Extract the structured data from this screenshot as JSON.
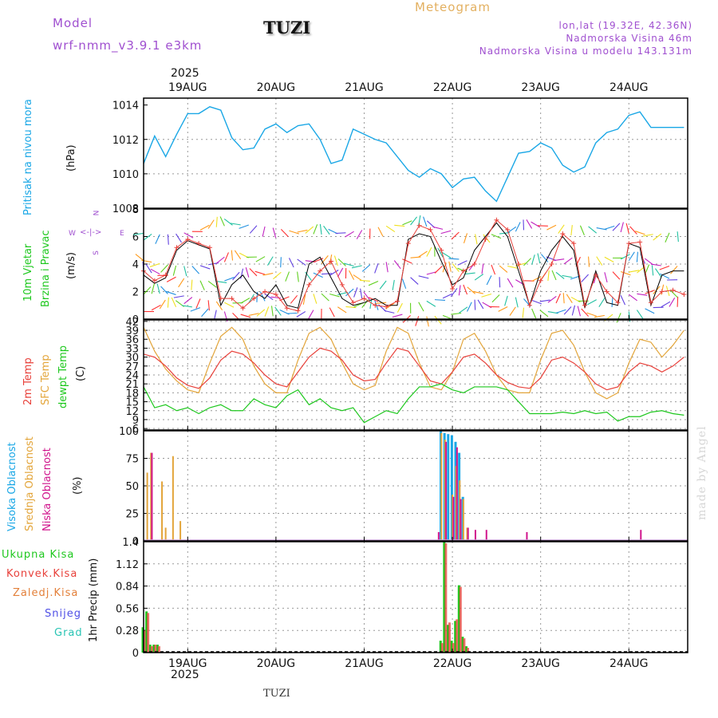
{
  "header": {
    "model_label": "Model",
    "model_name": "wrf-nmm_v3.9.1 e3km",
    "station": "TUZI",
    "meteogram_label": "Meteogram",
    "coords": "lon,lat (19.32E, 42.36N)",
    "elevation": "Nadmorska Visina 46m",
    "model_elevation": "Nadmorska Visina u modelu 143.131m",
    "year_top": "2025",
    "year_bottom": "2025",
    "footer_station": "TUZI",
    "credit": "made by Angel"
  },
  "colors": {
    "pressure": "#1aa7e6",
    "wind_speed": "#e8403a",
    "wind_gust": "#000000",
    "temp2m": "#e8403a",
    "sfctemp": "#e3a53a",
    "dewpt": "#1ec81e",
    "high_cloud": "#1aa7e6",
    "mid_cloud": "#e3a53a",
    "low_cloud": "#d0148c",
    "total_precip": "#1ec81e",
    "conv_precip": "#e8403a",
    "frozen_precip": "#e3803a",
    "snow": "#5050e6",
    "hail": "#29c4b4",
    "header_purple": "#a050d0",
    "meteogram": "#e3b060"
  },
  "chart_data": [
    {
      "type": "line",
      "panel": "pressure",
      "ylabels": [
        "Pritisak na nivou mora",
        "(hPa)"
      ],
      "ylim": [
        1008,
        1014.4
      ],
      "yticks": [
        "1008",
        "1010",
        "1012",
        "1014"
      ],
      "x_hours": [
        0,
        3,
        6,
        9,
        12,
        15,
        18,
        21,
        24,
        27,
        30,
        33,
        36,
        39,
        42,
        45,
        48,
        51,
        54,
        57,
        60,
        63,
        66,
        69,
        72,
        75,
        78,
        81,
        84,
        87,
        90,
        93,
        96,
        99,
        102,
        105,
        108,
        111,
        114,
        117,
        120,
        123,
        126,
        129,
        132,
        135,
        138,
        141,
        144,
        147
      ],
      "series": [
        {
          "name": "pressure",
          "values": [
            1010.6,
            1012.2,
            1011.0,
            1012.3,
            1013.5,
            1013.5,
            1013.9,
            1013.7,
            1012.1,
            1011.4,
            1011.5,
            1012.6,
            1012.9,
            1012.4,
            1012.8,
            1012.9,
            1012.0,
            1010.6,
            1010.8,
            1012.6,
            1012.3,
            1012.0,
            1011.8,
            1011.0,
            1010.2,
            1009.8,
            1010.3,
            1010.0,
            1009.2,
            1009.7,
            1009.8,
            1009.0,
            1008.4,
            1009.8,
            1011.2,
            1011.3,
            1011.8,
            1011.5,
            1010.5,
            1010.1,
            1010.4,
            1011.8,
            1012.4,
            1012.6,
            1013.4,
            1013.6,
            1012.7,
            1012.7,
            1012.7,
            1012.7
          ]
        }
      ]
    },
    {
      "type": "line",
      "panel": "wind",
      "ylabels": [
        "10m Vjetar",
        "Brzina i Pravac",
        "(m/s)"
      ],
      "compass": [
        "N",
        "E",
        "W",
        "S"
      ],
      "ylim": [
        0,
        8
      ],
      "yticks": [
        "0",
        "2",
        "4",
        "6",
        "8"
      ],
      "x_hours": [
        0,
        3,
        6,
        9,
        12,
        15,
        18,
        21,
        24,
        27,
        30,
        33,
        36,
        39,
        42,
        45,
        48,
        51,
        54,
        57,
        60,
        63,
        66,
        69,
        72,
        75,
        78,
        81,
        84,
        87,
        90,
        93,
        96,
        99,
        102,
        105,
        108,
        111,
        114,
        117,
        120,
        123,
        126,
        129,
        132,
        135,
        138,
        141,
        144,
        147
      ],
      "series": [
        {
          "name": "wind_speed",
          "values": [
            3.5,
            2.8,
            3.2,
            5.2,
            5.8,
            5.5,
            5.2,
            1.5,
            1.5,
            0.8,
            1.5,
            2.0,
            1.8,
            0.8,
            0.6,
            2.5,
            3.5,
            4.2,
            2.5,
            1.2,
            1.5,
            1.0,
            0.9,
            1.3,
            5.5,
            6.8,
            6.5,
            5.0,
            2.2,
            3.5,
            4.0,
            5.8,
            7.2,
            6.5,
            4.0,
            1.0,
            2.8,
            4.0,
            6.2,
            5.5,
            1.0,
            3.2,
            2.0,
            1.2,
            5.5,
            5.6,
            1.2,
            2.0,
            2.1,
            1.8
          ]
        },
        {
          "name": "wind_gust",
          "values": [
            3.2,
            2.6,
            3.0,
            5.0,
            5.7,
            5.4,
            5.1,
            1.0,
            2.5,
            3.2,
            2.0,
            1.5,
            2.5,
            1.0,
            0.8,
            4.0,
            4.5,
            3.0,
            1.5,
            1.0,
            1.2,
            1.5,
            1.0,
            1.0,
            5.8,
            6.2,
            6.0,
            4.2,
            2.5,
            3.0,
            5.0,
            6.0,
            7.0,
            6.0,
            3.5,
            1.0,
            3.5,
            5.0,
            6.0,
            5.0,
            0.8,
            3.5,
            1.2,
            1.0,
            5.5,
            5.2,
            1.0,
            3.2,
            3.5,
            3.5
          ]
        }
      ]
    },
    {
      "type": "line",
      "panel": "temperature",
      "ylabels": [
        "2m Temp",
        "SFC Temp",
        "dewpt Temp",
        "(C)"
      ],
      "ylim": [
        5.5,
        42.5
      ],
      "yticks": [
        "6",
        "9",
        "12",
        "15",
        "18",
        "21",
        "24",
        "27",
        "30",
        "33",
        "36",
        "39",
        "42"
      ],
      "x_hours": [
        0,
        3,
        6,
        9,
        12,
        15,
        18,
        21,
        24,
        27,
        30,
        33,
        36,
        39,
        42,
        45,
        48,
        51,
        54,
        57,
        60,
        63,
        66,
        69,
        72,
        75,
        78,
        81,
        84,
        87,
        90,
        93,
        96,
        99,
        102,
        105,
        108,
        111,
        114,
        117,
        120,
        123,
        126,
        129,
        132,
        135,
        138,
        141,
        144,
        147
      ],
      "series": [
        {
          "name": "temp2m",
          "values": [
            31,
            30,
            27,
            23,
            20.5,
            19.5,
            23,
            29,
            32,
            31,
            28,
            24,
            21,
            20,
            25,
            30,
            33,
            32,
            29,
            24,
            22,
            22.5,
            28,
            33,
            32,
            27,
            22,
            21,
            25,
            30,
            31,
            28,
            24,
            21.5,
            20,
            19.5,
            23,
            29,
            30,
            28,
            25,
            21,
            19,
            20,
            25,
            28,
            27,
            25,
            27,
            30
          ]
        },
        {
          "name": "sfctemp",
          "values": [
            40,
            32,
            26,
            22,
            19,
            18,
            28,
            37,
            40,
            36,
            27,
            21,
            18,
            18,
            29,
            38,
            40,
            36,
            28,
            21,
            19,
            20.5,
            32,
            40,
            38,
            28,
            20,
            19,
            25,
            36,
            38,
            32,
            24,
            19,
            18,
            18,
            29,
            38,
            39,
            34,
            25,
            18,
            16,
            18,
            28,
            36,
            35,
            30,
            34,
            39
          ]
        },
        {
          "name": "dewpt",
          "values": [
            20,
            13,
            14,
            12,
            13,
            11,
            13,
            14,
            12,
            12,
            16,
            14,
            13,
            17,
            19,
            14,
            16,
            13,
            12,
            13,
            8,
            10,
            12,
            11,
            16,
            20,
            20,
            21,
            19,
            18,
            20,
            20,
            20,
            19,
            15,
            11,
            11,
            11,
            11.5,
            11,
            12,
            11,
            11.5,
            8.5,
            10,
            10,
            11.5,
            12,
            11,
            10.5
          ]
        }
      ]
    },
    {
      "type": "bar",
      "panel": "clouds",
      "ylabels": [
        "Visoka Oblacnost",
        "Srednja Oblacnost",
        "Niska Oblacnost",
        "(%)"
      ],
      "ylim": [
        0,
        100
      ],
      "yticks": [
        "0",
        "25",
        "50",
        "75",
        "100"
      ],
      "series": [
        {
          "name": "high_cloud",
          "hours": [
            81,
            82,
            83,
            84,
            85,
            86,
            87
          ],
          "values": [
            100,
            98,
            97,
            96,
            90,
            80,
            40
          ]
        },
        {
          "name": "mid_cloud",
          "hours": [
            1,
            2,
            5,
            6,
            8,
            10,
            81,
            82,
            84,
            85,
            86,
            87,
            88
          ],
          "values": [
            62,
            80,
            54,
            12,
            77,
            18,
            98,
            92,
            42,
            68,
            55,
            38,
            12
          ]
        },
        {
          "name": "low_cloud",
          "hours": [
            2,
            80,
            82,
            84,
            85,
            86,
            88,
            90,
            93,
            104,
            135
          ],
          "values": [
            80,
            8,
            90,
            40,
            85,
            38,
            12,
            10,
            10,
            8,
            10
          ]
        }
      ]
    },
    {
      "type": "bar",
      "panel": "precip",
      "ylabels": [
        "Ukupna Kisa",
        "Konvek.Kisa",
        "Zaledj.Kisa",
        "Snijeg",
        "Grad",
        "1hr Precip (mm)"
      ],
      "ylim": [
        0,
        1.4
      ],
      "yticks": [
        "0",
        "0.28",
        "0.56",
        "0.84",
        "1.12",
        "1.4"
      ],
      "series": [
        {
          "name": "total_precip",
          "hours": [
            0,
            1,
            2,
            3,
            4,
            81,
            82,
            83,
            84,
            85,
            86,
            87,
            88
          ],
          "values": [
            0.32,
            0.52,
            0.1,
            0.1,
            0.1,
            0.15,
            1.4,
            0.35,
            0.15,
            0.4,
            0.85,
            0.2,
            0.08
          ]
        },
        {
          "name": "conv_precip",
          "hours": [
            0,
            1,
            2,
            3,
            4,
            81,
            82,
            83,
            84,
            85,
            86,
            87,
            88
          ],
          "values": [
            0.28,
            0.5,
            0.08,
            0.1,
            0.08,
            0.12,
            1.38,
            0.38,
            0.12,
            0.42,
            0.83,
            0.18,
            0.06
          ]
        }
      ]
    },
    {
      "type": "axis",
      "panel": "time",
      "x_range_hours": [
        0,
        148
      ],
      "date_labels": [
        {
          "label": "19AUG",
          "hour": 12
        },
        {
          "label": "20AUG",
          "hour": 36
        },
        {
          "label": "21AUG",
          "hour": 60
        },
        {
          "label": "22AUG",
          "hour": 84
        },
        {
          "label": "23AUG",
          "hour": 108
        },
        {
          "label": "24AUG",
          "hour": 132
        }
      ]
    }
  ]
}
